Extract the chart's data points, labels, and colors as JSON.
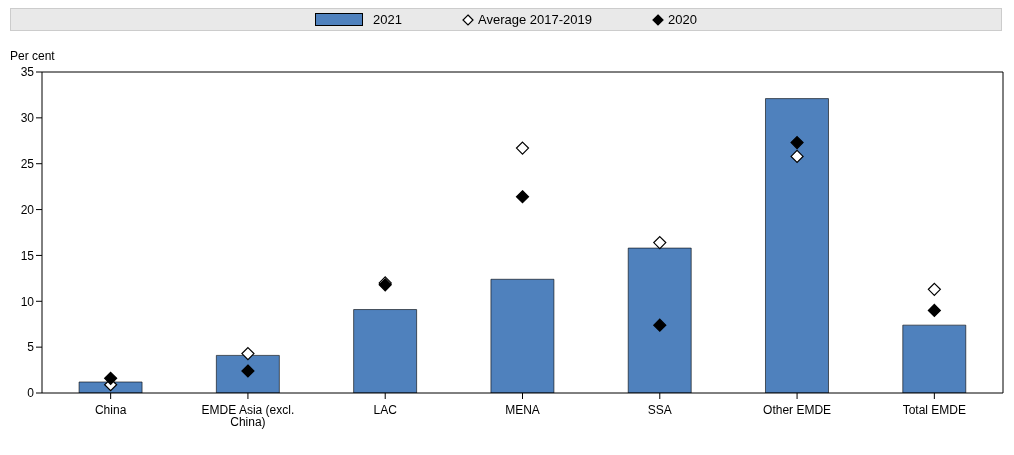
{
  "chart_data": {
    "type": "bar",
    "ylabel": "Per cent",
    "categories": [
      "China",
      "EMDE Asia (excl. China)",
      "LAC",
      "MENA",
      "SSA",
      "Other EMDE",
      "Total EMDE"
    ],
    "series": [
      {
        "name": "2021",
        "color": "#4f81bd",
        "values": [
          1.2,
          4.1,
          9.1,
          12.4,
          15.8,
          32.1,
          7.4
        ]
      },
      {
        "name": "Average 2017-2019",
        "type": "scatter",
        "color": "#ffffff",
        "values": [
          0.9,
          4.3,
          12.0,
          26.7,
          16.4,
          25.8,
          11.3
        ]
      },
      {
        "name": "2020",
        "type": "scatter",
        "color": "#000000",
        "values": [
          1.6,
          2.4,
          11.8,
          21.4,
          7.4,
          27.3,
          9.0
        ]
      }
    ],
    "ylim": [
      0,
      35
    ],
    "yticks": [
      0,
      5,
      10,
      15,
      20,
      25,
      30,
      35
    ],
    "grid": false,
    "legend": "top",
    "marker": "diamond"
  }
}
